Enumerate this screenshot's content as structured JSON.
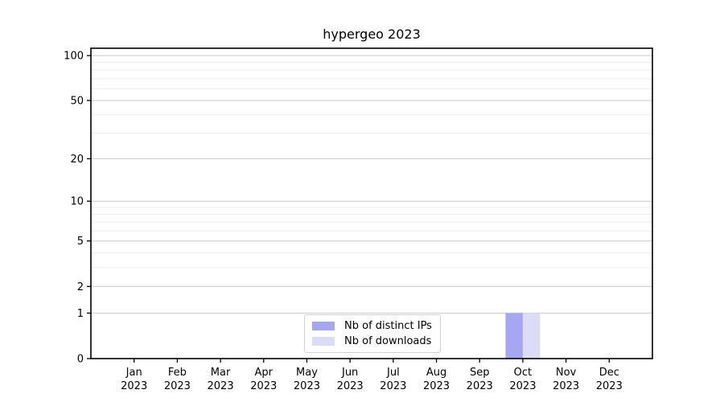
{
  "chart_data": {
    "type": "bar",
    "title": "hypergeo 2023",
    "months": [
      "Jan",
      "Feb",
      "Mar",
      "Apr",
      "May",
      "Jun",
      "Jul",
      "Aug",
      "Sep",
      "Oct",
      "Nov",
      "Dec"
    ],
    "year_label": "2023",
    "categories": [
      "Jan 2023",
      "Feb 2023",
      "Mar 2023",
      "Apr 2023",
      "May 2023",
      "Jun 2023",
      "Jul 2023",
      "Aug 2023",
      "Sep 2023",
      "Oct 2023",
      "Nov 2023",
      "Dec 2023"
    ],
    "series": [
      {
        "name": "Nb of distinct IPs",
        "color": "#a6a6f2",
        "values": [
          0,
          0,
          0,
          0,
          0,
          0,
          0,
          0,
          0,
          1,
          0,
          0
        ]
      },
      {
        "name": "Nb of downloads",
        "color": "#dcdcf8",
        "values": [
          0,
          0,
          0,
          0,
          0,
          0,
          0,
          0,
          0,
          1,
          0,
          0
        ]
      }
    ],
    "yscale": "log1p",
    "ylim": [
      0,
      112
    ],
    "yticks": [
      0,
      1,
      2,
      5,
      10,
      20,
      50,
      100
    ],
    "yticks_minor": [
      3,
      4,
      6,
      7,
      8,
      9,
      30,
      40,
      60,
      70,
      80,
      90
    ],
    "grid": "horizontal-only",
    "legend_position": "inside-bottom-center",
    "palette": {
      "spine": "#000000",
      "major_grid": "#c9c9c9",
      "minor_grid": "#ededed",
      "background": "#ffffff",
      "tick_text": "#000000"
    }
  }
}
